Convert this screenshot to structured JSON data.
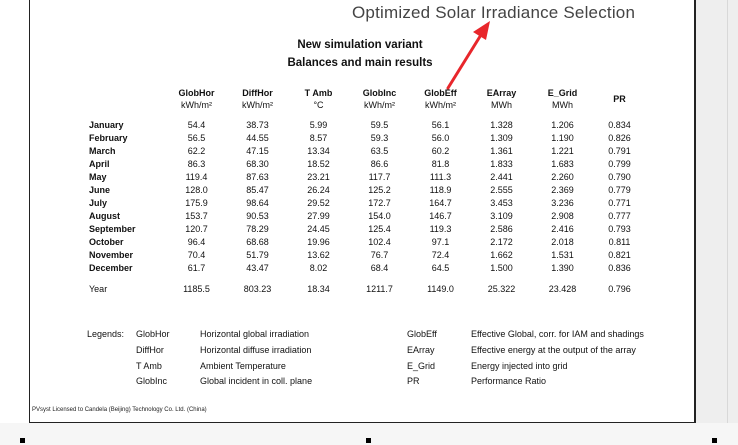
{
  "annotation": {
    "text": "Optimized Solar Irradiance Selection"
  },
  "document": {
    "title": "New simulation variant",
    "subtitle": "Balances and main results"
  },
  "table": {
    "columns": [
      {
        "name": "",
        "unit": ""
      },
      {
        "name": "GlobHor",
        "unit": "kWh/m²"
      },
      {
        "name": "DiffHor",
        "unit": "kWh/m²"
      },
      {
        "name": "T Amb",
        "unit": "°C"
      },
      {
        "name": "GlobInc",
        "unit": "kWh/m²"
      },
      {
        "name": "GlobEff",
        "unit": "kWh/m²"
      },
      {
        "name": "EArray",
        "unit": "MWh"
      },
      {
        "name": "E_Grid",
        "unit": "MWh"
      },
      {
        "name": "PR",
        "unit": ""
      }
    ],
    "rows": [
      {
        "month": "January",
        "values": [
          "54.4",
          "38.73",
          "5.99",
          "59.5",
          "56.1",
          "1.328",
          "1.206",
          "0.834"
        ]
      },
      {
        "month": "February",
        "values": [
          "56.5",
          "44.55",
          "8.57",
          "59.3",
          "56.0",
          "1.309",
          "1.190",
          "0.826"
        ]
      },
      {
        "month": "March",
        "values": [
          "62.2",
          "47.15",
          "13.34",
          "63.5",
          "60.2",
          "1.361",
          "1.221",
          "0.791"
        ]
      },
      {
        "month": "April",
        "values": [
          "86.3",
          "68.30",
          "18.52",
          "86.6",
          "81.8",
          "1.833",
          "1.683",
          "0.799"
        ]
      },
      {
        "month": "May",
        "values": [
          "119.4",
          "87.63",
          "23.21",
          "117.7",
          "111.3",
          "2.441",
          "2.260",
          "0.790"
        ]
      },
      {
        "month": "June",
        "values": [
          "128.0",
          "85.47",
          "26.24",
          "125.2",
          "118.9",
          "2.555",
          "2.369",
          "0.779"
        ]
      },
      {
        "month": "July",
        "values": [
          "175.9",
          "98.64",
          "29.52",
          "172.7",
          "164.7",
          "3.453",
          "3.236",
          "0.771"
        ]
      },
      {
        "month": "August",
        "values": [
          "153.7",
          "90.53",
          "27.99",
          "154.0",
          "146.7",
          "3.109",
          "2.908",
          "0.777"
        ]
      },
      {
        "month": "September",
        "values": [
          "120.7",
          "78.29",
          "24.45",
          "125.4",
          "119.3",
          "2.586",
          "2.416",
          "0.793"
        ]
      },
      {
        "month": "October",
        "values": [
          "96.4",
          "68.68",
          "19.96",
          "102.4",
          "97.1",
          "2.172",
          "2.018",
          "0.811"
        ]
      },
      {
        "month": "November",
        "values": [
          "70.4",
          "51.79",
          "13.62",
          "76.7",
          "72.4",
          "1.662",
          "1.531",
          "0.821"
        ]
      },
      {
        "month": "December",
        "values": [
          "61.7",
          "43.47",
          "8.02",
          "68.4",
          "64.5",
          "1.500",
          "1.390",
          "0.836"
        ]
      }
    ],
    "year": {
      "label": "Year",
      "values": [
        "1185.5",
        "803.23",
        "18.34",
        "1211.7",
        "1149.0",
        "25.322",
        "23.428",
        "0.796"
      ]
    }
  },
  "legends": {
    "label": "Legends:",
    "left": [
      {
        "code": "GlobHor",
        "desc": "Horizontal global irradiation"
      },
      {
        "code": "DiffHor",
        "desc": "Horizontal diffuse irradiation"
      },
      {
        "code": "T Amb",
        "desc": "Ambient Temperature"
      },
      {
        "code": "GlobInc",
        "desc": "Global incident in coll. plane"
      }
    ],
    "right": [
      {
        "code": "GlobEff",
        "desc": "Effective Global, corr. for IAM and shadings"
      },
      {
        "code": "EArray",
        "desc": "Effective energy at the output of the array"
      },
      {
        "code": "E_Grid",
        "desc": "Energy injected into grid"
      },
      {
        "code": "PR",
        "desc": "Performance Ratio"
      }
    ]
  },
  "footer": {
    "license": "PVsyst Licensed to  Candela (Beijing) Technology Co. Ltd. (China)"
  },
  "colors": {
    "arrow": "#e8262b",
    "annotation": "#444444",
    "page_border": "#222222"
  }
}
